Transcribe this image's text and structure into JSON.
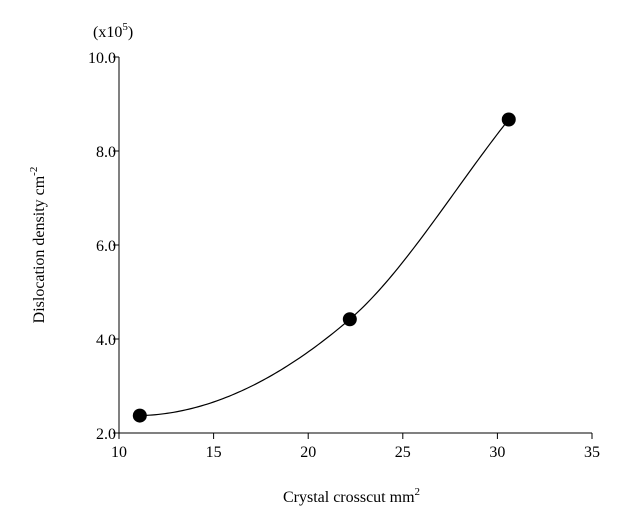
{
  "chart_data": {
    "type": "scatter",
    "xlabel": "Crystal crosscut mm",
    "xlabel_sup": "2",
    "ylabel": "Dislocation density cm",
    "ylabel_sup": "-2",
    "y_multiplier_text": "(x10",
    "y_multiplier_sup": "5",
    "y_multiplier_close": ")",
    "xlim": [
      10,
      35
    ],
    "ylim": [
      2.0,
      10.0
    ],
    "xticks": [
      10,
      15,
      20,
      25,
      30,
      35
    ],
    "yticks": [
      2.0,
      4.0,
      6.0,
      8.0,
      10.0
    ],
    "ytick_labels": [
      "2.0",
      "4.0",
      "6.0",
      "8.0",
      "10.0"
    ],
    "grid": false,
    "series": [
      {
        "points": [
          {
            "x": 11.1,
            "y": 2.37
          },
          {
            "x": 22.2,
            "y": 4.42
          },
          {
            "x": 30.6,
            "y": 8.67
          }
        ],
        "marker": "filled-circle",
        "smooth_curve": true
      }
    ],
    "colors": {
      "line": "#000000",
      "marker": "#000000"
    }
  }
}
